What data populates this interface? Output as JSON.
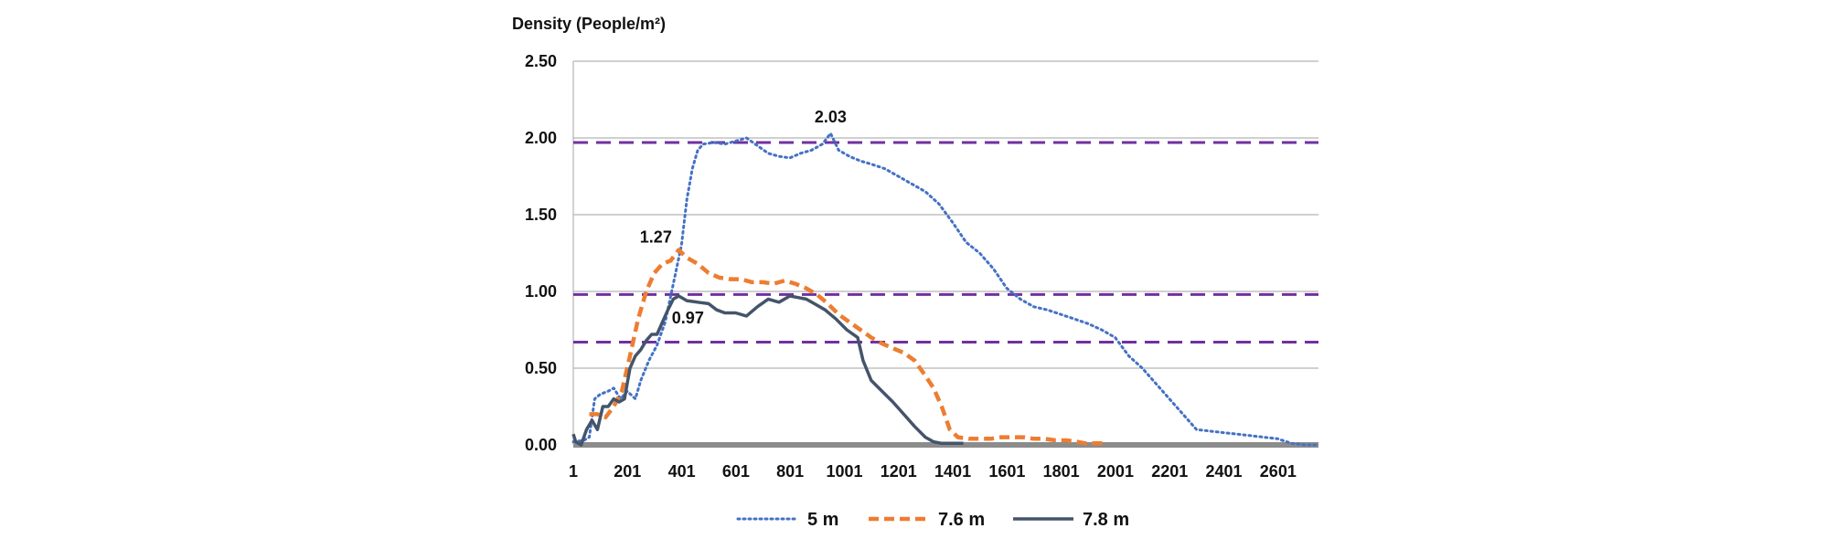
{
  "chart_data": {
    "type": "line",
    "ylabel": "Density (People/m²)",
    "xlabel": "",
    "xlim": [
      1,
      2750
    ],
    "ylim": [
      0,
      2.5
    ],
    "x_ticks": [
      "1",
      "201",
      "401",
      "601",
      "801",
      "1001",
      "1201",
      "1401",
      "1601",
      "1801",
      "2001",
      "2201",
      "2401",
      "2601"
    ],
    "y_ticks": [
      "0.00",
      "0.50",
      "1.00",
      "1.50",
      "2.00",
      "2.50"
    ],
    "grid": true,
    "legend_position": "bottom",
    "reference_lines": [
      {
        "value": 1.97,
        "color": "#7030a0",
        "style": "dashed"
      },
      {
        "value": 0.98,
        "color": "#7030a0",
        "style": "dashed"
      },
      {
        "value": 0.67,
        "color": "#7030a0",
        "style": "dashed"
      }
    ],
    "series": [
      {
        "name": "5 m",
        "color": "#4472c4",
        "style": "dotted",
        "points": [
          [
            1,
            0.02
          ],
          [
            40,
            0.03
          ],
          [
            60,
            0.05
          ],
          [
            80,
            0.3
          ],
          [
            100,
            0.33
          ],
          [
            130,
            0.35
          ],
          [
            150,
            0.37
          ],
          [
            175,
            0.3
          ],
          [
            200,
            0.35
          ],
          [
            230,
            0.3
          ],
          [
            250,
            0.42
          ],
          [
            280,
            0.55
          ],
          [
            310,
            0.65
          ],
          [
            340,
            0.8
          ],
          [
            370,
            1.05
          ],
          [
            400,
            1.3
          ],
          [
            420,
            1.6
          ],
          [
            440,
            1.8
          ],
          [
            460,
            1.92
          ],
          [
            480,
            1.96
          ],
          [
            520,
            1.97
          ],
          [
            560,
            1.96
          ],
          [
            600,
            1.98
          ],
          [
            640,
            2.0
          ],
          [
            680,
            1.95
          ],
          [
            720,
            1.9
          ],
          [
            760,
            1.88
          ],
          [
            800,
            1.87
          ],
          [
            840,
            1.9
          ],
          [
            880,
            1.92
          ],
          [
            920,
            1.96
          ],
          [
            950,
            2.03
          ],
          [
            980,
            1.92
          ],
          [
            1020,
            1.88
          ],
          [
            1060,
            1.85
          ],
          [
            1100,
            1.83
          ],
          [
            1150,
            1.8
          ],
          [
            1200,
            1.75
          ],
          [
            1250,
            1.7
          ],
          [
            1300,
            1.65
          ],
          [
            1350,
            1.57
          ],
          [
            1400,
            1.45
          ],
          [
            1450,
            1.32
          ],
          [
            1500,
            1.25
          ],
          [
            1550,
            1.15
          ],
          [
            1600,
            1.02
          ],
          [
            1650,
            0.95
          ],
          [
            1700,
            0.9
          ],
          [
            1750,
            0.88
          ],
          [
            1800,
            0.85
          ],
          [
            1850,
            0.82
          ],
          [
            1900,
            0.79
          ],
          [
            1950,
            0.75
          ],
          [
            2000,
            0.7
          ],
          [
            2050,
            0.58
          ],
          [
            2100,
            0.5
          ],
          [
            2150,
            0.4
          ],
          [
            2200,
            0.3
          ],
          [
            2250,
            0.2
          ],
          [
            2300,
            0.1
          ],
          [
            2350,
            0.09
          ],
          [
            2400,
            0.08
          ],
          [
            2450,
            0.07
          ],
          [
            2500,
            0.06
          ],
          [
            2550,
            0.05
          ],
          [
            2600,
            0.04
          ],
          [
            2650,
            0.01
          ],
          [
            2700,
            0.0
          ],
          [
            2750,
            0.0
          ]
        ]
      },
      {
        "name": "7.6 m",
        "color": "#ed7d31",
        "style": "dashed",
        "points": [
          [
            60,
            0.2
          ],
          [
            90,
            0.2
          ],
          [
            120,
            0.18
          ],
          [
            150,
            0.25
          ],
          [
            180,
            0.35
          ],
          [
            210,
            0.58
          ],
          [
            240,
            0.82
          ],
          [
            270,
            1.0
          ],
          [
            300,
            1.12
          ],
          [
            330,
            1.18
          ],
          [
            360,
            1.2
          ],
          [
            390,
            1.27
          ],
          [
            420,
            1.22
          ],
          [
            460,
            1.18
          ],
          [
            500,
            1.12
          ],
          [
            540,
            1.09
          ],
          [
            580,
            1.08
          ],
          [
            620,
            1.08
          ],
          [
            660,
            1.06
          ],
          [
            700,
            1.06
          ],
          [
            740,
            1.05
          ],
          [
            780,
            1.07
          ],
          [
            820,
            1.05
          ],
          [
            860,
            1.02
          ],
          [
            900,
            0.98
          ],
          [
            940,
            0.92
          ],
          [
            980,
            0.85
          ],
          [
            1020,
            0.8
          ],
          [
            1060,
            0.75
          ],
          [
            1100,
            0.7
          ],
          [
            1140,
            0.66
          ],
          [
            1180,
            0.63
          ],
          [
            1220,
            0.6
          ],
          [
            1260,
            0.55
          ],
          [
            1300,
            0.45
          ],
          [
            1330,
            0.37
          ],
          [
            1360,
            0.25
          ],
          [
            1390,
            0.1
          ],
          [
            1420,
            0.05
          ],
          [
            1460,
            0.04
          ],
          [
            1500,
            0.04
          ],
          [
            1540,
            0.04
          ],
          [
            1580,
            0.05
          ],
          [
            1620,
            0.05
          ],
          [
            1660,
            0.05
          ],
          [
            1700,
            0.04
          ],
          [
            1740,
            0.04
          ],
          [
            1780,
            0.03
          ],
          [
            1820,
            0.03
          ],
          [
            1860,
            0.02
          ],
          [
            1890,
            0.01
          ],
          [
            1920,
            0.01
          ],
          [
            1970,
            0.01
          ]
        ]
      },
      {
        "name": "7.8 m",
        "color": "#44546a",
        "style": "solid",
        "points": [
          [
            1,
            0.07
          ],
          [
            10,
            0.02
          ],
          [
            30,
            0.0
          ],
          [
            50,
            0.1
          ],
          [
            70,
            0.16
          ],
          [
            90,
            0.1
          ],
          [
            110,
            0.25
          ],
          [
            130,
            0.25
          ],
          [
            150,
            0.3
          ],
          [
            170,
            0.28
          ],
          [
            190,
            0.3
          ],
          [
            210,
            0.5
          ],
          [
            230,
            0.58
          ],
          [
            250,
            0.62
          ],
          [
            270,
            0.68
          ],
          [
            290,
            0.72
          ],
          [
            310,
            0.72
          ],
          [
            330,
            0.8
          ],
          [
            350,
            0.88
          ],
          [
            370,
            0.95
          ],
          [
            390,
            0.97
          ],
          [
            420,
            0.94
          ],
          [
            460,
            0.93
          ],
          [
            500,
            0.92
          ],
          [
            530,
            0.88
          ],
          [
            560,
            0.86
          ],
          [
            600,
            0.86
          ],
          [
            640,
            0.84
          ],
          [
            680,
            0.9
          ],
          [
            720,
            0.95
          ],
          [
            760,
            0.93
          ],
          [
            800,
            0.97
          ],
          [
            830,
            0.96
          ],
          [
            860,
            0.95
          ],
          [
            890,
            0.92
          ],
          [
            930,
            0.88
          ],
          [
            970,
            0.82
          ],
          [
            1010,
            0.75
          ],
          [
            1050,
            0.7
          ],
          [
            1070,
            0.55
          ],
          [
            1100,
            0.42
          ],
          [
            1140,
            0.35
          ],
          [
            1180,
            0.28
          ],
          [
            1220,
            0.2
          ],
          [
            1260,
            0.12
          ],
          [
            1300,
            0.05
          ],
          [
            1330,
            0.02
          ],
          [
            1360,
            0.01
          ],
          [
            1400,
            0.01
          ],
          [
            1440,
            0.01
          ]
        ]
      }
    ],
    "annotations": [
      {
        "text": "2.03",
        "x": 950,
        "y": 2.03
      },
      {
        "text": "1.27",
        "x": 390,
        "y": 1.27
      },
      {
        "text": "0.97",
        "x": 390,
        "y": 0.97
      }
    ]
  }
}
